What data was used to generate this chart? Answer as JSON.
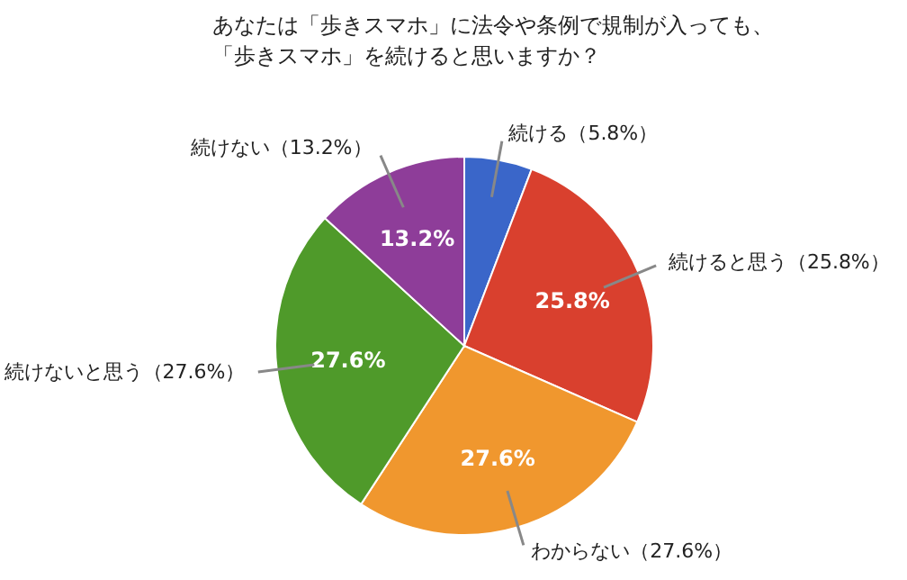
{
  "chart_data": {
    "type": "pie",
    "title": "あなたは「歩きスマホ」に法令や条例で規制が入っても、「歩きスマホ」を続けると思いますか？",
    "categories": [
      "続ける（5.8%）",
      "続けると思う（25.8%）",
      "わからない（27.6%）",
      "続けないと思う（27.6%）",
      "続けない（13.2%）"
    ],
    "values": [
      5.8,
      25.8,
      27.6,
      27.6,
      13.2
    ],
    "colors": [
      "#3a66c9",
      "#d9402e",
      "#f0972e",
      "#4f9a2a",
      "#8e3d99"
    ],
    "value_labels": [
      null,
      "25.8%",
      "27.6%",
      "27.6%",
      "13.2%"
    ]
  }
}
